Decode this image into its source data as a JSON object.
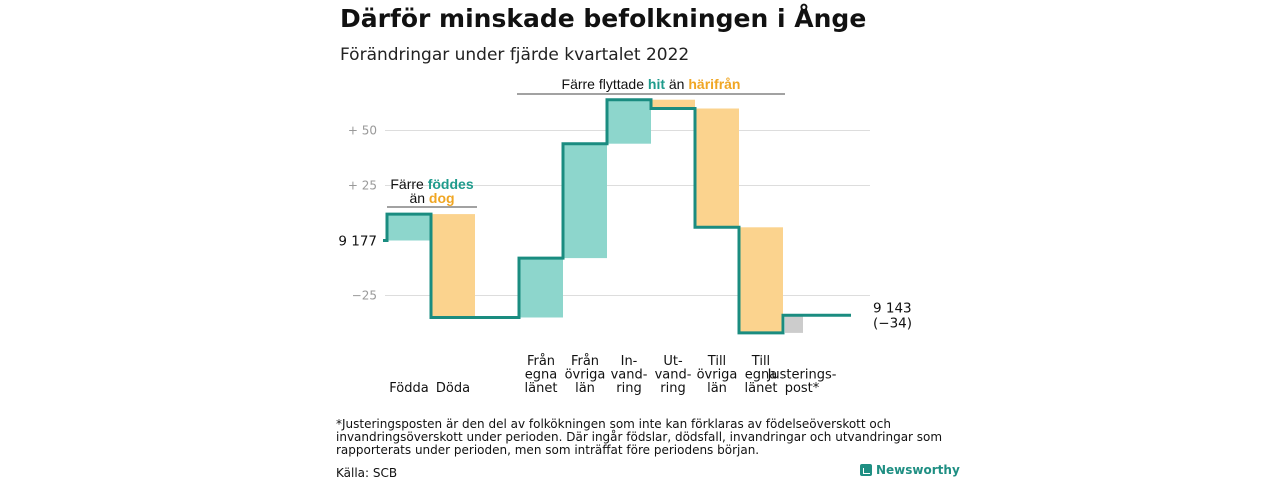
{
  "title": "Därför minskade befolkningen i Ånge",
  "subtitle": "Förändringar under fjärde kvartalet 2022",
  "colors": {
    "increase": "#8dd6cc",
    "decrease": "#fbd38e",
    "adjustment": "#cccccc",
    "line": "#1a8c80",
    "grid": "#dddddd",
    "teal_text": "#1f9b8c",
    "orange_text": "#f0a623"
  },
  "chart_data": {
    "type": "waterfall",
    "start": {
      "value": 9177,
      "label": "9 177"
    },
    "end": {
      "value": 9143,
      "label": "9 143",
      "change_label": "(−34)"
    },
    "ylim": [
      -45,
      66
    ],
    "yticks": [
      {
        "value": -25,
        "label": "−25"
      },
      {
        "value": 0,
        "label": ""
      },
      {
        "value": 25,
        "label": "+ 25"
      },
      {
        "value": 50,
        "label": "+ 50"
      }
    ],
    "categories": [
      {
        "label": [
          "Födda"
        ],
        "delta": 12,
        "kind": "increase"
      },
      {
        "label": [
          "Döda"
        ],
        "delta": -47,
        "kind": "decrease"
      },
      {
        "label": [],
        "delta": 0,
        "kind": "gap"
      },
      {
        "label": [
          "Från",
          "egna",
          "länet"
        ],
        "delta": 27,
        "kind": "increase"
      },
      {
        "label": [
          "Från",
          "övriga",
          "län"
        ],
        "delta": 52,
        "kind": "increase"
      },
      {
        "label": [
          "In-",
          "vand-",
          "ring"
        ],
        "delta": 20,
        "kind": "increase"
      },
      {
        "label": [
          "Ut-",
          "vand-",
          "ring"
        ],
        "delta": -4,
        "kind": "decrease"
      },
      {
        "label": [
          "Till",
          "övriga",
          "län"
        ],
        "delta": -54,
        "kind": "decrease"
      },
      {
        "label": [
          "Till",
          "egna",
          "länet"
        ],
        "delta": -48,
        "kind": "decrease"
      },
      {
        "label": [
          "Justerings-",
          "post*"
        ],
        "delta": 8,
        "kind": "adjustment"
      }
    ],
    "annotations": [
      {
        "parts": [
          {
            "text": "Färre ",
            "style": "plain"
          },
          {
            "text": "föddes",
            "style": "teal"
          }
        ],
        "parts2": [
          {
            "text": "än ",
            "style": "plain"
          },
          {
            "text": "dog",
            "style": "orange"
          }
        ]
      },
      {
        "parts": [
          {
            "text": "Färre flyttade ",
            "style": "plain"
          },
          {
            "text": "hit",
            "style": "teal"
          },
          {
            "text": " än ",
            "style": "plain"
          },
          {
            "text": "härifrån",
            "style": "orange"
          }
        ]
      }
    ]
  },
  "footnote": "*Justeringsposten är den del av folkökningen som inte kan förklaras av födelseöverskott och invandringsöverskott under perioden. Där ingår födslar, dödsfall, invandringar och utvandringar som rapporterats under perioden, men som inträffat före periodens början.",
  "source": "Källa: SCB",
  "logo_text": "Newsworthy"
}
